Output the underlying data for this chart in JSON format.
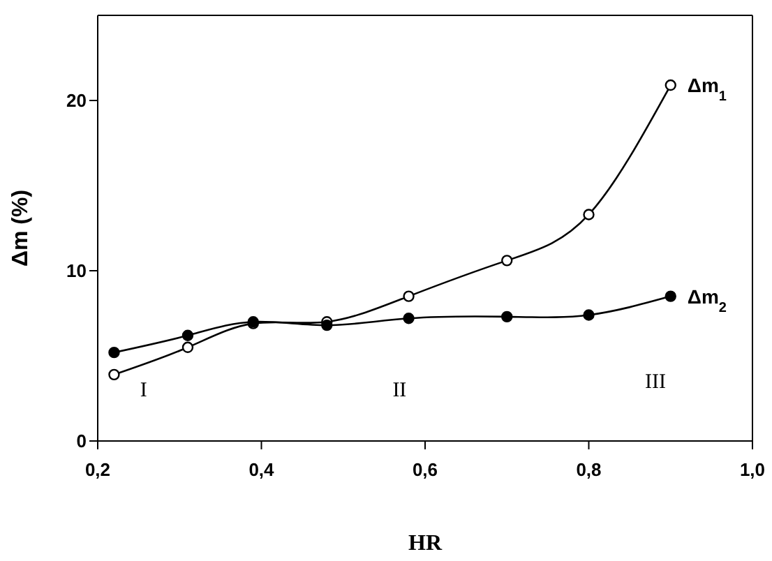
{
  "chart_data": {
    "type": "line",
    "xlabel": "HR",
    "ylabel": "Δm (%)",
    "x": [
      0.22,
      0.31,
      0.39,
      0.48,
      0.58,
      0.7,
      0.8,
      0.9
    ],
    "series": [
      {
        "name": "Δm$_{1}$",
        "color": "#000000",
        "values": [
          3.9,
          5.5,
          6.9,
          7.0,
          8.5,
          10.6,
          13.3,
          20.9
        ]
      },
      {
        "name": "Δm$_{2}$",
        "color": "#000000",
        "values": [
          5.2,
          6.2,
          7.0,
          6.8,
          7.2,
          7.3,
          7.4,
          8.5
        ]
      }
    ],
    "xlim": [
      0.2,
      1.0
    ],
    "xticks": [
      {
        "value": 0.2,
        "label": "0,2"
      },
      {
        "value": 0.4,
        "label": "0,4"
      },
      {
        "value": 0.6,
        "label": "0,6"
      },
      {
        "value": 0.8,
        "label": "0,8"
      },
      {
        "value": 1.0,
        "label": "1,0"
      }
    ],
    "ylim": [
      0,
      25
    ],
    "yticks": [
      0,
      10,
      20
    ],
    "annotations": [
      "I",
      "II",
      "III"
    ],
    "marker": "circle",
    "grid": false,
    "legend": false
  }
}
